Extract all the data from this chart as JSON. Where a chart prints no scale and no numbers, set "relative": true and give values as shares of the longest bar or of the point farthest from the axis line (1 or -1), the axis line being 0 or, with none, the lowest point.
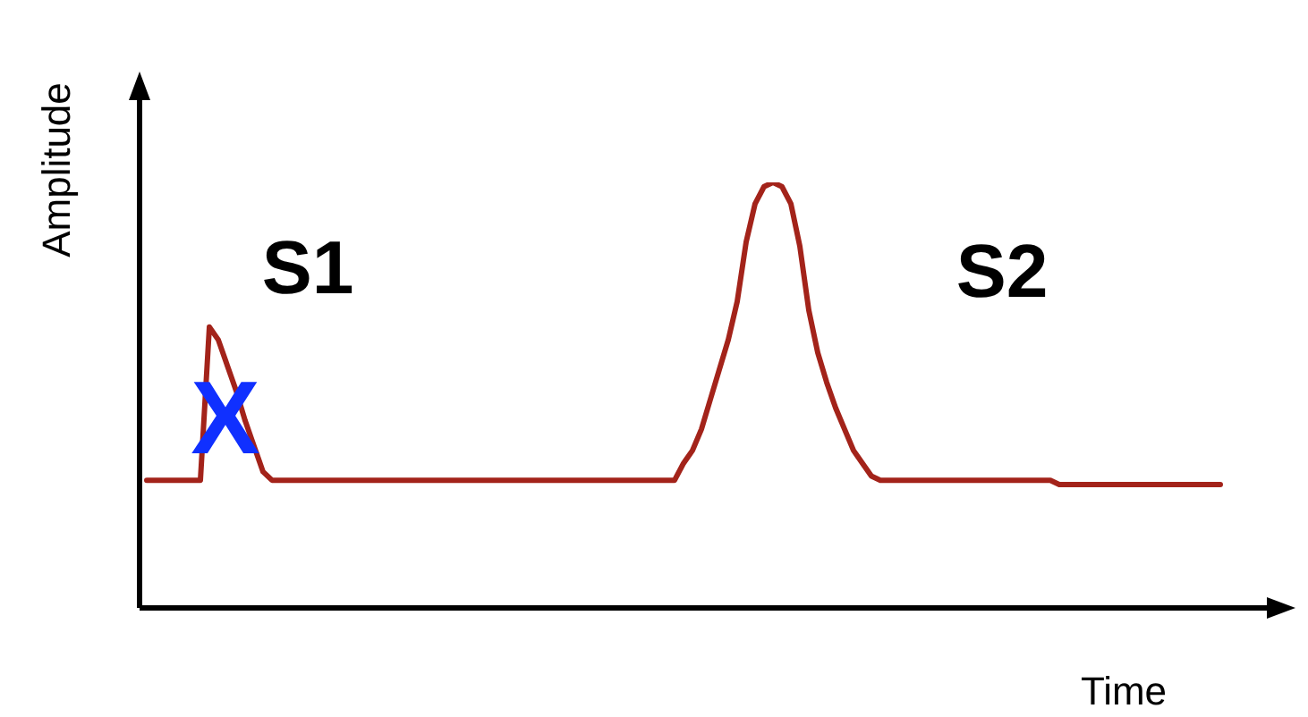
{
  "chart_data": {
    "type": "line",
    "relative": true,
    "xlabel": "Time",
    "ylabel": "Amplitude",
    "annotations": [
      "S1",
      "S2",
      "X"
    ],
    "legend": false,
    "marker": "none",
    "line_style": "solid",
    "categories": [
      null,
      null,
      null,
      null,
      null,
      null,
      null,
      null,
      null,
      null,
      null,
      null,
      null,
      null,
      null,
      null,
      null,
      null,
      null,
      null,
      null,
      null,
      null,
      null,
      null,
      null,
      null,
      null,
      null,
      null,
      null,
      null,
      null,
      null,
      null,
      null,
      null,
      null,
      null,
      null,
      null,
      null,
      null,
      null,
      null,
      null,
      null,
      null,
      null,
      null,
      null,
      null,
      null,
      null,
      null,
      null,
      null,
      null,
      null,
      null,
      null,
      null,
      null,
      null,
      null,
      null,
      null,
      null,
      null,
      null,
      null,
      null,
      null,
      null,
      null,
      null,
      null,
      null,
      null,
      null,
      null,
      null,
      null,
      null,
      null,
      null,
      null,
      null,
      null,
      null,
      null,
      null,
      null,
      null,
      null,
      null,
      null,
      null,
      null,
      null,
      null,
      null,
      null,
      null,
      null,
      null,
      null,
      null,
      null,
      null,
      null,
      null,
      null,
      null,
      null,
      null,
      null,
      null,
      null,
      null,
      null
    ],
    "series": [
      {
        "color": "#a3231a",
        "values": [
          0.3,
          0.3,
          0.3,
          0.3,
          0.3,
          0.3,
          0.3,
          0.66,
          0.63,
          0.57,
          0.51,
          0.44,
          0.38,
          0.32,
          0.3,
          0.3,
          0.3,
          0.3,
          0.3,
          0.3,
          0.3,
          0.3,
          0.3,
          0.3,
          0.3,
          0.3,
          0.3,
          0.3,
          0.3,
          0.3,
          0.3,
          0.3,
          0.3,
          0.3,
          0.3,
          0.3,
          0.3,
          0.3,
          0.3,
          0.3,
          0.3,
          0.3,
          0.3,
          0.3,
          0.3,
          0.3,
          0.3,
          0.3,
          0.3,
          0.3,
          0.3,
          0.3,
          0.3,
          0.3,
          0.3,
          0.3,
          0.3,
          0.3,
          0.3,
          0.3,
          0.34,
          0.37,
          0.42,
          0.49,
          0.56,
          0.63,
          0.72,
          0.86,
          0.95,
          0.99,
          1.0,
          0.99,
          0.95,
          0.85,
          0.7,
          0.6,
          0.53,
          0.47,
          0.42,
          0.37,
          0.34,
          0.31,
          0.3,
          0.3,
          0.3,
          0.3,
          0.3,
          0.3,
          0.3,
          0.3,
          0.3,
          0.3,
          0.3,
          0.3,
          0.3,
          0.3,
          0.3,
          0.3,
          0.3,
          0.3,
          0.3,
          0.3,
          0.29,
          0.29,
          0.29,
          0.29,
          0.29,
          0.29,
          0.29,
          0.29,
          0.29,
          0.29,
          0.29,
          0.29,
          0.29,
          0.29,
          0.29,
          0.29,
          0.29,
          0.29,
          0.29
        ]
      }
    ]
  }
}
